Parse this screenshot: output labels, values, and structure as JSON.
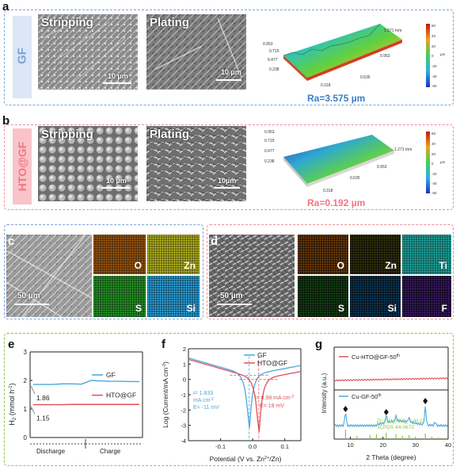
{
  "panels": {
    "a": {
      "letter": "a",
      "sample": "GF",
      "stripping": "Stripping",
      "plating": "Plating",
      "scale1": "10 µm",
      "scale2": "10 µm",
      "roughness": "Ra=3.575 µm",
      "map_ticks": [
        "0.953",
        "0.715",
        "0.477",
        "0.238",
        "0.318",
        "0.635",
        "0.953",
        "1.271 mm"
      ],
      "colorbar": [
        "60",
        "40",
        "20",
        "0",
        "-20",
        "-40",
        "-60"
      ],
      "colorbar_unit": "µm"
    },
    "b": {
      "letter": "b",
      "sample": "HTO@GF",
      "stripping": "Stripping",
      "plating": "Plating",
      "scale1": "10 µm",
      "scale2": "10µm",
      "roughness": "Ra=0.192 µm",
      "map_ticks": [
        "0.953",
        "0.715",
        "0.477",
        "0.238",
        "0.318",
        "0.635",
        "0.953",
        "1.271 mm"
      ],
      "colorbar": [
        "60",
        "40",
        "20",
        "0",
        "-20",
        "-40",
        "-60"
      ],
      "colorbar_unit": "µm"
    },
    "c": {
      "letter": "c",
      "scale": "50 µm",
      "maps": [
        "O",
        "Zn",
        "S",
        "Si"
      ]
    },
    "d": {
      "letter": "d",
      "scale": "50 µm",
      "maps": [
        "O",
        "Zn",
        "Ti",
        "S",
        "Si",
        "F"
      ]
    },
    "e": {
      "letter": "e"
    },
    "f": {
      "letter": "f"
    },
    "g": {
      "letter": "g"
    }
  },
  "chart_data": [
    {
      "panel": "e",
      "type": "line",
      "ylabel": "H2 (mmol h-1)",
      "ylim": [
        0,
        3
      ],
      "yticks": [
        "0",
        "1",
        "2",
        "3"
      ],
      "xlabels": [
        "Discharge",
        "Charge"
      ],
      "series": [
        {
          "name": "GF",
          "color": "#4aa8dc",
          "values": [
            1.86,
            1.86,
            1.86,
            1.88,
            1.88,
            1.87,
            2.0,
            1.98,
            1.97,
            1.97,
            1.96,
            1.96
          ],
          "annotation": "1.86"
        },
        {
          "name": "HTO@GF",
          "color": "#e0505a",
          "values": [
            1.15,
            1.15,
            1.15,
            1.15,
            1.16,
            1.16,
            1.16,
            1.16,
            1.16,
            1.16,
            1.16,
            1.16
          ],
          "annotation": "1.15"
        }
      ]
    },
    {
      "panel": "f",
      "type": "line",
      "xlabel": "Potential (V vs. Zn2+/Zn)",
      "ylabel": "Log (Current/mA cm-2)",
      "xlim": [
        -0.2,
        0.15
      ],
      "ylim": [
        -4,
        2
      ],
      "xticks": [
        "-0.1",
        "0.0",
        "0.1"
      ],
      "yticks": [
        "-4",
        "-3",
        "-2",
        "-1",
        "0",
        "1",
        "2"
      ],
      "series": [
        {
          "name": "GF",
          "color": "#4aa8dc",
          "ecorr": -0.011,
          "icorr_label": "i= 1.833 mA cm-2",
          "e_label": "E= -11 mV"
        },
        {
          "name": "HTO@GF",
          "color": "#e0505a",
          "ecorr": 0.019,
          "icorr_label": "i= 0.98 mA cm-2",
          "e_label": "E= 19 mV"
        }
      ]
    },
    {
      "panel": "g",
      "type": "line",
      "xlabel": "2 Theta (degree)",
      "ylabel": "Intensity (a.u.)",
      "xlim": [
        5,
        40
      ],
      "xticks": [
        "10",
        "20",
        "30",
        "40"
      ],
      "series": [
        {
          "name": "Cu-HTO@GF-50th",
          "color": "#e0505a"
        },
        {
          "name": "Cu-GF-50th",
          "color": "#4aa8dc"
        }
      ],
      "reference": "Zn4SO4(OH)6 · xH2O",
      "reference_card": "JCPDS 44-0673",
      "reference_color": "#8cc63f"
    }
  ]
}
